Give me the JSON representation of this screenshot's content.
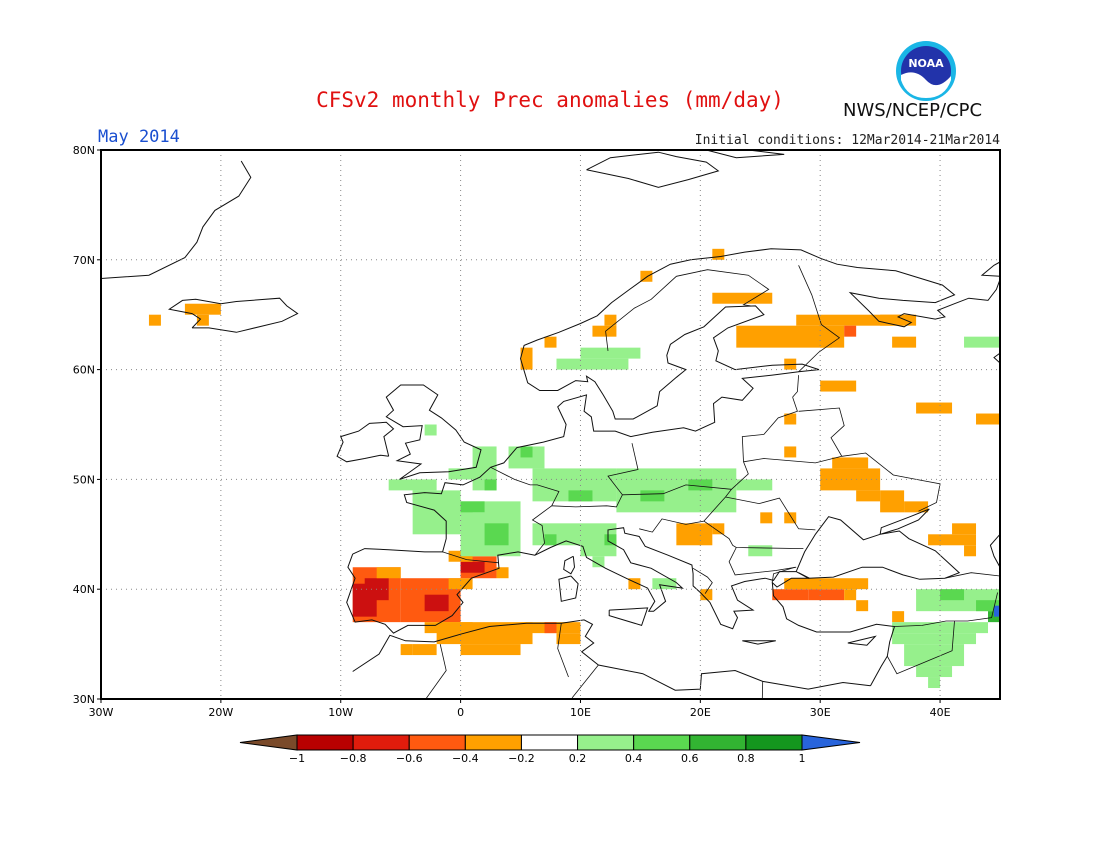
{
  "header": {
    "title": "CFSv2 monthly Prec anomalies (mm/day)",
    "agency": "NWS/NCEP/CPC",
    "logo_text": "NOAA",
    "month": "May 2014",
    "initial_conditions": "Initial conditions: 12Mar2014-21Mar2014"
  },
  "map": {
    "lon_range": [
      -30,
      45
    ],
    "lat_range": [
      30,
      80
    ],
    "lat_labels": [
      "30N",
      "40N",
      "50N",
      "60N",
      "70N",
      "80N"
    ],
    "lon_labels": [
      "30W",
      "20W",
      "10W",
      "0",
      "10E",
      "20E",
      "30E",
      "40E"
    ],
    "grid": true
  },
  "colorbar": {
    "labels": [
      "-1",
      "-0.8",
      "-0.6",
      "-0.4",
      "-0.2",
      "0.2",
      "0.4",
      "0.6",
      "0.8",
      "1"
    ],
    "colors": [
      "#7a4a2a",
      "#b80000",
      "#e01c0c",
      "#ff5a10",
      "#ffa000",
      "#ffffff",
      "#96f08c",
      "#5ad850",
      "#32b432",
      "#14961e",
      "#2864dc"
    ]
  },
  "colors": {
    "dry_strong": "#cc1010",
    "dry_medium": "#ff5a10",
    "dry_light": "#ffa000",
    "wet_light": "#96f08c",
    "wet_medium": "#5ad850",
    "wet_strong": "#32b432"
  }
}
